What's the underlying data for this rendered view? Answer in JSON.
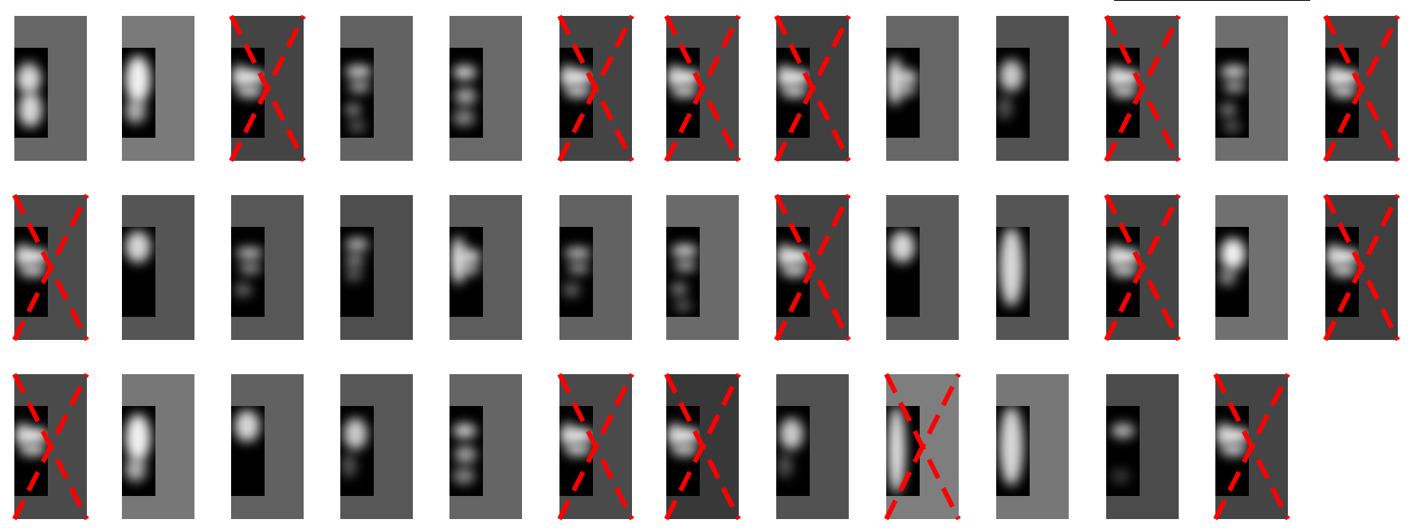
{
  "grid": {
    "rows": [
      {
        "tiles": [
          {
            "shade": "#676767",
            "rejected": false,
            "pattern": "a"
          },
          {
            "shade": "#7a7a7a",
            "rejected": false,
            "pattern": "b"
          },
          {
            "shade": "#444444",
            "rejected": true,
            "pattern": "c"
          },
          {
            "shade": "#626262",
            "rejected": false,
            "pattern": "d"
          },
          {
            "shade": "#696969",
            "rejected": false,
            "pattern": "e"
          },
          {
            "shade": "#444444",
            "rejected": true,
            "pattern": "c"
          },
          {
            "shade": "#4a4a4a",
            "rejected": true,
            "pattern": "c"
          },
          {
            "shade": "#3f3f3f",
            "rejected": true,
            "pattern": "c"
          },
          {
            "shade": "#666666",
            "rejected": false,
            "pattern": "f"
          },
          {
            "shade": "#525252",
            "rejected": false,
            "pattern": "g"
          },
          {
            "shade": "#4d4d4d",
            "rejected": true,
            "pattern": "c"
          },
          {
            "shade": "#6e6e6e",
            "rejected": false,
            "pattern": "d"
          },
          {
            "shade": "#464646",
            "rejected": true,
            "pattern": "c"
          }
        ]
      },
      {
        "tiles": [
          {
            "shade": "#4b4b4b",
            "rejected": true,
            "pattern": "c"
          },
          {
            "shade": "#555555",
            "rejected": false,
            "pattern": "h"
          },
          {
            "shade": "#575757",
            "rejected": false,
            "pattern": "i"
          },
          {
            "shade": "#4e4e4e",
            "rejected": false,
            "pattern": "j"
          },
          {
            "shade": "#5d5d5d",
            "rejected": false,
            "pattern": "f"
          },
          {
            "shade": "#626262",
            "rejected": false,
            "pattern": "i"
          },
          {
            "shade": "#6a6a6a",
            "rejected": false,
            "pattern": "d"
          },
          {
            "shade": "#434343",
            "rejected": true,
            "pattern": "c"
          },
          {
            "shade": "#5b5b5b",
            "rejected": false,
            "pattern": "h"
          },
          {
            "shade": "#555555",
            "rejected": false,
            "pattern": "k"
          },
          {
            "shade": "#444444",
            "rejected": true,
            "pattern": "c"
          },
          {
            "shade": "#707070",
            "rejected": false,
            "pattern": "l"
          },
          {
            "shade": "#3f3f3f",
            "rejected": true,
            "pattern": "c"
          }
        ]
      },
      {
        "tiles": [
          {
            "shade": "#4a4a4a",
            "rejected": true,
            "pattern": "c"
          },
          {
            "shade": "#777777",
            "rejected": false,
            "pattern": "b"
          },
          {
            "shade": "#616161",
            "rejected": false,
            "pattern": "h"
          },
          {
            "shade": "#575757",
            "rejected": false,
            "pattern": "g"
          },
          {
            "shade": "#656565",
            "rejected": false,
            "pattern": "e"
          },
          {
            "shade": "#4a4a4a",
            "rejected": true,
            "pattern": "c"
          },
          {
            "shade": "#383838",
            "rejected": true,
            "pattern": "c"
          },
          {
            "shade": "#515151",
            "rejected": false,
            "pattern": "g"
          },
          {
            "shade": "#7e7e7e",
            "rejected": true,
            "pattern": "m"
          },
          {
            "shade": "#777777",
            "rejected": false,
            "pattern": "k"
          },
          {
            "shade": "#4b4b4b",
            "rejected": false,
            "pattern": "n"
          },
          {
            "shade": "#444444",
            "rejected": true,
            "pattern": "c"
          }
        ]
      }
    ],
    "colors": {
      "background": "#ffffff",
      "cross": "#ff0000",
      "patch": "#000000"
    }
  }
}
